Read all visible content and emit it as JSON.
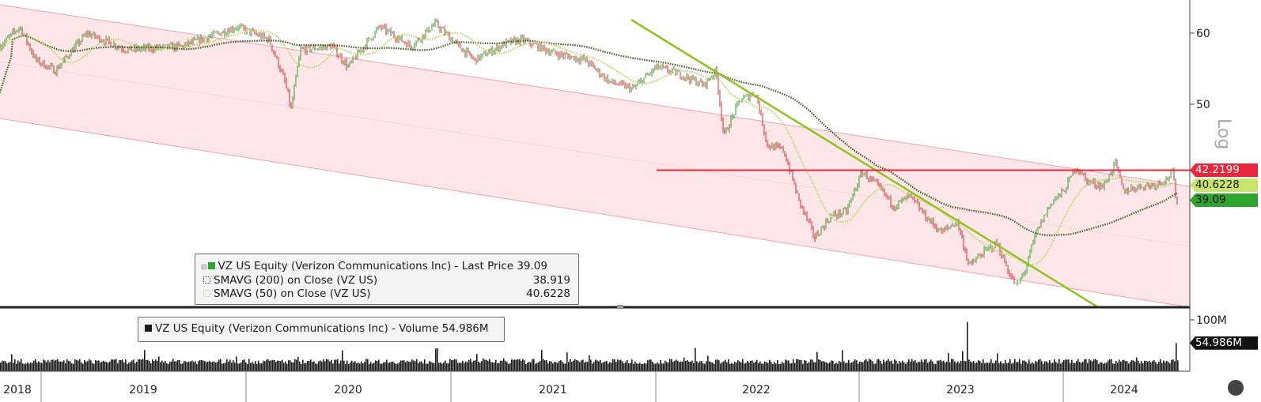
{
  "chart_data": {
    "type": "line",
    "x_axis_labels": [
      "2018",
      "2019",
      "2020",
      "2021",
      "2022",
      "2023",
      "2024"
    ],
    "price_axis": {
      "ticks": [
        50,
        60
      ],
      "scale": "log",
      "label": "Log"
    },
    "volume_axis": {
      "ticks": [
        "100M"
      ]
    },
    "price_series": {
      "name": "VZ US Equity (Verizon Communications Inc) - Last Price",
      "last": 39.09,
      "color_up": "#2e9e2e",
      "color_down": "#d8282f"
    },
    "sma200": {
      "name": "SMAVG (200) on Close (VZ US)",
      "value": 38.919,
      "color": "#3d5a1e"
    },
    "sma50": {
      "name": "SMAVG (50) on Close (VZ US)",
      "value": 40.6228,
      "color": "#b4d66a"
    },
    "horizontal_level": {
      "value": 42.2199,
      "color": "#e8263d"
    },
    "volume_series": {
      "name": "VZ US Equity (Verizon Communications Inc) - Volume",
      "last": "54.986M"
    },
    "price_tags": [
      {
        "label": "42.2199",
        "bg": "#e8263d",
        "fg": "#ffffff"
      },
      {
        "label": "40.6228",
        "bg": "#c8e46e",
        "fg": "#1a1a1a"
      },
      {
        "label": "39.09",
        "bg": "#2fa52f",
        "fg": "#111111"
      }
    ],
    "volume_tag": {
      "label": "54.986M"
    }
  },
  "legend": {
    "price_title": "VZ US Equity (Verizon Communications Inc) - Last Price 39.09",
    "sma200_label": "SMAVG (200)  on Close (VZ US)",
    "sma200_value": "38.919",
    "sma50_label": "SMAVG (50)  on Close (VZ US)",
    "sma50_value": "40.6228",
    "volume_title": "VZ US Equity (Verizon Communications Inc) - Volume 54.986M"
  },
  "axis_text": {
    "tick_60": "60",
    "tick_50": "50",
    "log_label": "Log",
    "vol_tick": "100M"
  },
  "colors": {
    "channel_fill": "#fde6e8",
    "channel_line": "#f0a3ad",
    "trendline": "#8fc31f",
    "volume": "#1b1b1b"
  }
}
